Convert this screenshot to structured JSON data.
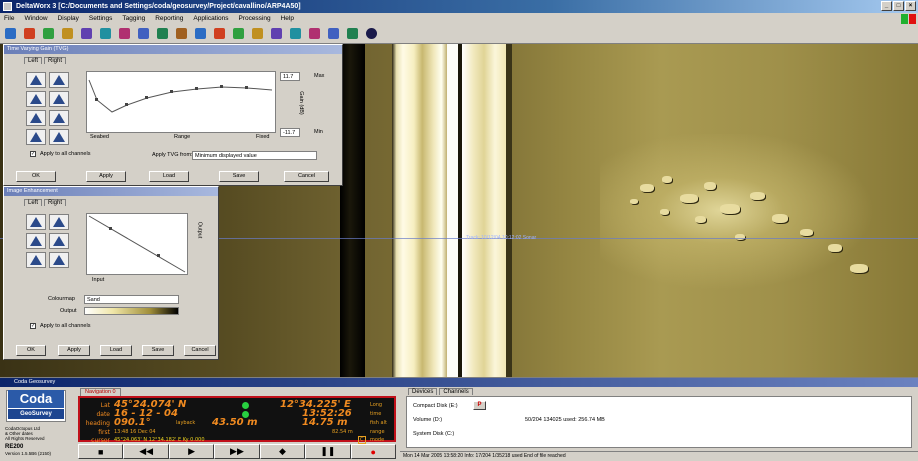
{
  "window": {
    "title": "DeltaWorx 3 [C:/Documents and Settings/coda/geosurvey/Project/cavallino/ARP4A50]"
  },
  "menu": [
    "File",
    "Window",
    "Display",
    "Settings",
    "Tagging",
    "Reporting",
    "Applications",
    "Processing",
    "Help"
  ],
  "toolbar_icons": [
    "tool-icon",
    "tool-icon",
    "tool-icon",
    "tool-icon",
    "tool-icon",
    "tool-icon",
    "tool-icon",
    "tool-icon",
    "tool-icon",
    "tool-icon",
    "tool-icon",
    "tool-icon",
    "tool-icon",
    "tool-icon",
    "tool-icon",
    "tool-icon",
    "tool-icon",
    "tool-icon",
    "tool-icon",
    "help-icon"
  ],
  "sonar": {
    "track_label": "Track: 10/12/04 10:12:02 Sonar"
  },
  "tvg": {
    "title": "Time Varying Gain (TVG)",
    "tabs": [
      "Left",
      "Right"
    ],
    "gain_top": "11.7",
    "gain_bottom": "-11.7",
    "max_label": "Max",
    "min_label": "Min",
    "gain_axis": "Gain (dB)",
    "x_start": "Seabed",
    "x_mid": "Range",
    "x_end": "Fixed",
    "apply_all": "Apply to all channels",
    "apply_from_label": "Apply TVG from:",
    "apply_from_value": "Minimum displayed value",
    "buttons": [
      "OK",
      "Apply",
      "Load",
      "Save",
      "Cancel"
    ]
  },
  "image_enh": {
    "title": "Image Enhancement",
    "tabs": [
      "Left",
      "Right"
    ],
    "output_label": "Output",
    "input_label": "Input",
    "colourmap_label": "Colourmap",
    "colourmap_value": "Sand",
    "output_bar_label": "Output",
    "apply_all": "Apply to all channels",
    "buttons": [
      "OK",
      "Apply",
      "Load",
      "Save",
      "Cancel"
    ]
  },
  "bottom": {
    "title": "Coda Geosurvey",
    "logo_main": "Coda",
    "logo_sub": "GeoSurvey",
    "corp": "CodaOctopus Ltd\n& Other dates\nAll Rights Reserved",
    "product": "RE200",
    "version": "Version 1.5.5B6 (2150)",
    "nav_tab": "Navigation 0",
    "nav": {
      "lat_label": "Lat",
      "lat": "45°24.074' N",
      "long": "12°34.225' E",
      "long_label": "Long",
      "date_label": "date",
      "date": "16 - 12 - 04",
      "time": "13:52:26",
      "time_label": "time",
      "heading_label": "heading",
      "heading": "090.1°",
      "layback_label": "layback",
      "layback": "43.50 m",
      "fish_alt": "14.75 m",
      "fish_alt_label": "fish alt",
      "first_label": "first",
      "first": "13:48 16 Dec 04",
      "range": "82.54 m",
      "range_label": "range",
      "cursor_label": "cursor",
      "cursor": "45°24.063' N  12°34.182' E   Ky   0.000",
      "mode_label": "mode"
    },
    "transport": [
      "■",
      "◀◀",
      "▶",
      "▶▶",
      "◆",
      "❚❚",
      "●"
    ],
    "devices": {
      "tabs": [
        "Devices",
        "Channels"
      ],
      "compact": "Compact Disk (E:)",
      "volume": "Volume (D:)",
      "volume_info": "50/204 134025 used: 256.74 MB",
      "system": "System Disk (C:)"
    },
    "status": "Mon 14 Mar 2005 13:58:20  Info: 17/204 1/35218 used  End of file reached"
  },
  "colors": {
    "accent": "#0a246a",
    "nav_bg": "#111111",
    "nav_text": "#f08a20",
    "nav_border": "#c0101a"
  }
}
